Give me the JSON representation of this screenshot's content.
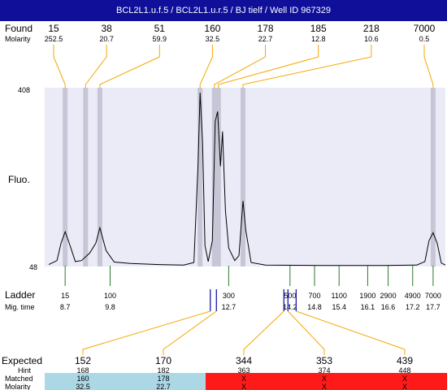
{
  "title": "BCL2L1.u.f.5 / BCL2L1.u.r.5 / BJ tielf / Well ID 967329",
  "labels": {
    "found": "Found",
    "molarity": "Molarity",
    "fluo": "Fluo.",
    "ladder": "Ladder",
    "mig_time": "Mig. time",
    "expected": "Expected",
    "hint": "Hint",
    "matched": "Matched",
    "molarity2": "Molarity"
  },
  "chart_data": {
    "type": "line",
    "ylim": [
      48,
      408
    ],
    "y_ticks": [
      "408",
      "48"
    ],
    "ylabel": "Fluo.",
    "found_peaks": [
      {
        "size": "15",
        "molarity": "252.5"
      },
      {
        "size": "38",
        "molarity": "20.7"
      },
      {
        "size": "51",
        "molarity": "59.9"
      },
      {
        "size": "160",
        "molarity": "32.5"
      },
      {
        "size": "178",
        "molarity": "22.7"
      },
      {
        "size": "185",
        "molarity": "12.8"
      },
      {
        "size": "218",
        "molarity": "10.6"
      },
      {
        "size": "7000",
        "molarity": "0.5"
      }
    ],
    "ladder": [
      {
        "size": "15",
        "time": "8.7"
      },
      {
        "size": "100",
        "time": "9.8"
      },
      {
        "size": "300",
        "time": "12.7"
      },
      {
        "size": "500",
        "time": "14.2"
      },
      {
        "size": "700",
        "time": "14.8"
      },
      {
        "size": "1100",
        "time": "15.4"
      },
      {
        "size": "1900",
        "time": "16.1"
      },
      {
        "size": "2900",
        "time": "16.6"
      },
      {
        "size": "4900",
        "time": "17.2"
      },
      {
        "size": "7000",
        "time": "17.7"
      }
    ],
    "expected": [
      {
        "expected": "152",
        "hint": "168",
        "matched": "160",
        "molarity": "32.5",
        "status": "matched"
      },
      {
        "expected": "170",
        "hint": "182",
        "matched": "178",
        "molarity": "22.7",
        "status": "matched"
      },
      {
        "expected": "344",
        "hint": "363",
        "matched": "X",
        "molarity": "X",
        "status": "missing"
      },
      {
        "expected": "353",
        "hint": "374",
        "matched": "X",
        "molarity": "X",
        "status": "missing"
      },
      {
        "expected": "439",
        "hint": "448",
        "matched": "X",
        "molarity": "X",
        "status": "missing"
      }
    ],
    "trace": [
      {
        "x": 8.3,
        "y": 52
      },
      {
        "x": 8.5,
        "y": 60
      },
      {
        "x": 8.6,
        "y": 95
      },
      {
        "x": 8.7,
        "y": 118
      },
      {
        "x": 8.8,
        "y": 95
      },
      {
        "x": 8.95,
        "y": 58
      },
      {
        "x": 9.1,
        "y": 60
      },
      {
        "x": 9.3,
        "y": 75
      },
      {
        "x": 9.45,
        "y": 95
      },
      {
        "x": 9.55,
        "y": 126
      },
      {
        "x": 9.7,
        "y": 80
      },
      {
        "x": 9.9,
        "y": 57
      },
      {
        "x": 10.3,
        "y": 54
      },
      {
        "x": 11.0,
        "y": 52
      },
      {
        "x": 11.6,
        "y": 51
      },
      {
        "x": 11.85,
        "y": 56
      },
      {
        "x": 11.95,
        "y": 250
      },
      {
        "x": 12.0,
        "y": 398
      },
      {
        "x": 12.06,
        "y": 300
      },
      {
        "x": 12.12,
        "y": 90
      },
      {
        "x": 12.2,
        "y": 58
      },
      {
        "x": 12.3,
        "y": 100
      },
      {
        "x": 12.37,
        "y": 340
      },
      {
        "x": 12.43,
        "y": 360
      },
      {
        "x": 12.5,
        "y": 250
      },
      {
        "x": 12.55,
        "y": 320
      },
      {
        "x": 12.62,
        "y": 160
      },
      {
        "x": 12.7,
        "y": 85
      },
      {
        "x": 12.85,
        "y": 60
      },
      {
        "x": 12.95,
        "y": 70
      },
      {
        "x": 13.05,
        "y": 180
      },
      {
        "x": 13.12,
        "y": 120
      },
      {
        "x": 13.25,
        "y": 56
      },
      {
        "x": 13.6,
        "y": 51
      },
      {
        "x": 15.0,
        "y": 50
      },
      {
        "x": 16.5,
        "y": 50
      },
      {
        "x": 17.3,
        "y": 51
      },
      {
        "x": 17.5,
        "y": 58
      },
      {
        "x": 17.6,
        "y": 100
      },
      {
        "x": 17.7,
        "y": 116
      },
      {
        "x": 17.8,
        "y": 95
      },
      {
        "x": 17.9,
        "y": 55
      },
      {
        "x": 18.0,
        "y": 51
      }
    ],
    "x_range": [
      8.2,
      18.0
    ],
    "peak_times": [
      8.7,
      9.2,
      9.55,
      12.0,
      12.35,
      12.45,
      13.05,
      17.7
    ],
    "ladder_times": [
      8.7,
      9.8,
      12.7,
      14.2,
      14.8,
      15.4,
      16.1,
      16.6,
      17.2,
      17.7
    ],
    "expected_times": [
      12.25,
      12.4,
      14.05,
      14.15,
      14.35
    ],
    "colors": {
      "title_bg": "#0f0f9a",
      "plot_bg": "#ebebf8",
      "peak_band": "#c6c6d6",
      "leader": "#f5a800",
      "ladder_tick": "#2b7a2b",
      "expected_tick": "#1a1aa8",
      "matched_bg": "#acd8e6",
      "missing_bg": "#ff1a1a"
    }
  }
}
